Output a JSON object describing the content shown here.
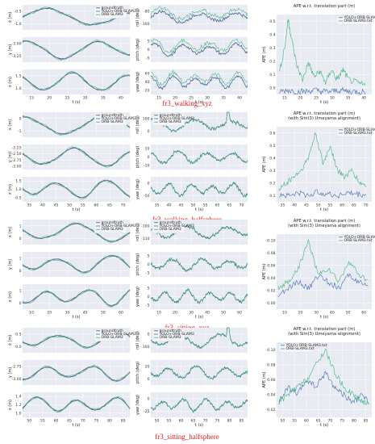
{
  "colors": {
    "panel_bg": "#e9ebf2",
    "grid": "#ffffff",
    "gt": "#4a4a4a",
    "yolo": "#3c6bb4",
    "orb": "#3fb37d",
    "caption": "#e8181c"
  },
  "rows": [
    {
      "caption": "fr3_walking_xyz",
      "traj": {
        "legend": [
          "groundtruth",
          "YOLO+ORB-SLAM3",
          "ORB-SLAM3"
        ],
        "xlabel": "t (s)",
        "xticks": [
          "15",
          "20",
          "25",
          "30",
          "35",
          "40"
        ],
        "xlim": [
          12,
          45
        ],
        "axes": [
          {
            "ylabel": "x (m)",
            "yticks": [
              "-0.5",
              "-1.0"
            ]
          },
          {
            "ylabel": "y (m)",
            "yticks": [
              "-3.00",
              "-3.25"
            ]
          },
          {
            "ylabel": "z (m)",
            "yticks": [
              "1.5",
              "1.0"
            ]
          }
        ]
      },
      "rpy": {
        "legend": [],
        "xlabel": "t (s)",
        "xticks": [
          "15",
          "20",
          "25",
          "30",
          "35",
          "40"
        ],
        "xlim": [
          12,
          45
        ],
        "axes": [
          {
            "ylabel": "roll (deg)",
            "yticks": [
              "-80",
              "-100"
            ]
          },
          {
            "ylabel": "pitch (deg)",
            "yticks": [
              "5",
              "0",
              "-5"
            ]
          },
          {
            "ylabel": "yaw (deg)",
            "yticks": [
              "60",
              "40",
              "20"
            ]
          }
        ]
      },
      "ape": {
        "title": [
          "APE w.r.t. translation part (m)"
        ],
        "legend": [
          "YOLO+ORB-SLAM3.txt",
          "ORB-SLAM3.txt"
        ],
        "legend_pos": "top-right",
        "xlabel": "t (s)",
        "ylabel": "APE (m)",
        "xticks": [
          "15",
          "20",
          "25",
          "30",
          "35",
          "40"
        ],
        "xlim": [
          12,
          45
        ],
        "yticks": [
          "0.5",
          "0.4",
          "0.3",
          "0.2",
          "0.1",
          "0.0"
        ],
        "ylim": [
          0,
          0.55
        ]
      }
    },
    {
      "caption": "fr3_walking_halfsphere",
      "traj": {
        "legend": [
          "groundtruth",
          "YOLO+ORB-SLAM3",
          "ORB-SLAM3"
        ],
        "xlabel": "t (s)",
        "xticks": [
          "35",
          "40",
          "45",
          "50",
          "55",
          "60",
          "65",
          "70"
        ],
        "xlim": [
          33,
          72
        ],
        "axes": [
          {
            "ylabel": "x (m)",
            "yticks": [
              "0",
              "-1"
            ]
          },
          {
            "ylabel": "y (m)",
            "yticks": [
              "-2.25",
              "-2.50",
              "-2.75",
              "-3.00"
            ]
          },
          {
            "ylabel": "z (m)",
            "yticks": [
              "1.5",
              "1.0",
              "0.5"
            ]
          }
        ]
      },
      "rpy": {
        "legend": [
          "groundtruth",
          "YOLO+ORB-SLAM3",
          "ORB-SLAM3"
        ],
        "xlabel": "t (s)",
        "xticks": [
          "35",
          "40",
          "45",
          "50",
          "55",
          "60",
          "65",
          "70"
        ],
        "xlim": [
          33,
          72
        ],
        "axes": [
          {
            "ylabel": "roll (deg)",
            "yticks": [
              "100",
              "0"
            ]
          },
          {
            "ylabel": "pitch (deg)",
            "yticks": [
              "10",
              "0",
              "-10"
            ]
          },
          {
            "ylabel": "yaw (deg)",
            "yticks": [
              "0",
              "-50"
            ]
          }
        ]
      },
      "ape": {
        "title": [
          "APE w.r.t. translation part (m)",
          "(with Sim(3) Umeyama alignment)"
        ],
        "legend": [
          "YOLO+ORB-SLAM3.txt",
          "ORB-SLAM3.txt"
        ],
        "legend_pos": "top-right",
        "xlabel": "t (s)",
        "ylabel": "APE (m)",
        "xticks": [
          "35",
          "40",
          "45",
          "50",
          "55",
          "60",
          "65",
          "70"
        ],
        "xlim": [
          33,
          72
        ],
        "yticks": [
          "0.6",
          "0.5",
          "0.4",
          "0.3",
          "0.2",
          "0.1"
        ],
        "ylim": [
          0.05,
          0.65
        ]
      }
    },
    {
      "caption": "fr3_sitting_xyz",
      "traj": {
        "legend": [
          "groundtruth",
          "YOLO+ORB-SLAM3",
          "ORB-SLAM3"
        ],
        "xlabel": "t (s)",
        "xticks": [
          "10",
          "20",
          "30",
          "40",
          "50",
          "60"
        ],
        "xlim": [
          2,
          68
        ],
        "axes": [
          {
            "ylabel": "x (m)",
            "yticks": [
              "1",
              "0"
            ]
          },
          {
            "ylabel": "y (m)",
            "yticks": [
              "1",
              "0"
            ]
          },
          {
            "ylabel": "z (m)",
            "yticks": [
              "1",
              "0"
            ]
          }
        ]
      },
      "rpy": {
        "legend": [
          "groundtruth",
          "YOLO+ORB-SLAM3",
          "ORB-SLAM3"
        ],
        "xlabel": "t (s)",
        "xticks": [
          "10",
          "20",
          "30",
          "40",
          "50",
          "60"
        ],
        "xlim": [
          2,
          68
        ],
        "axes": [
          {
            "ylabel": "roll (deg)",
            "yticks": [
              "-100",
              "-110"
            ]
          },
          {
            "ylabel": "pitch (deg)",
            "yticks": [
              "5",
              "0",
              "-5"
            ]
          },
          {
            "ylabel": "yaw (deg)",
            "yticks": [
              "5",
              "0",
              "-5"
            ]
          }
        ]
      },
      "ape": {
        "title": [
          "APE w.r.t. translation part (m)",
          "(with Sim(3) Umeyama alignment)"
        ],
        "legend": [
          "YOLO+ORB-SLAM3.txt",
          "ORB-SLAM3.txt"
        ],
        "legend_pos": "top-right",
        "xlabel": "t (s)",
        "ylabel": "APE (m)",
        "xticks": [
          "10",
          "20",
          "30",
          "40",
          "50",
          "60"
        ],
        "xlim": [
          2,
          68
        ],
        "yticks": [
          "0.10",
          "0.08",
          "0.06",
          "0.04",
          "0.02",
          "0.00"
        ],
        "ylim": [
          0,
          0.11
        ]
      }
    },
    {
      "caption": "fr3_sitting_halfsphere",
      "traj": {
        "legend": [
          "groundtruth",
          "YOLO+ORB-SLAM3",
          "ORB-SLAM3"
        ],
        "xlabel": "t (s)",
        "xticks": [
          "50",
          "55",
          "60",
          "65",
          "70",
          "75",
          "80",
          "85"
        ],
        "xlim": [
          47,
          88
        ],
        "axes": [
          {
            "ylabel": "x (m)",
            "yticks": [
              "0.5",
              "0.0"
            ]
          },
          {
            "ylabel": "y (m)",
            "yticks": [
              "-2.75",
              "-3.00"
            ]
          },
          {
            "ylabel": "z (m)",
            "yticks": [
              "1.4",
              "1.2",
              "1.0"
            ]
          }
        ]
      },
      "rpy": {
        "legend": [
          "groundtruth",
          "YOLO+ORB-SLAM3",
          "ORB-SLAM3"
        ],
        "xlabel": "t (s)",
        "xticks": [
          "50",
          "55",
          "60",
          "65",
          "70",
          "75",
          "80",
          "85"
        ],
        "xlim": [
          47,
          88
        ],
        "axes": [
          {
            "ylabel": "roll (deg)",
            "yticks": [
              "0",
              "-100"
            ]
          },
          {
            "ylabel": "pitch (deg)",
            "yticks": [
              "20",
              "0"
            ]
          },
          {
            "ylabel": "yaw (deg)",
            "yticks": [
              "0",
              "-25"
            ]
          }
        ]
      },
      "ape": {
        "title": [
          "APE w.r.t. translation part (m)",
          "(with Sim(3) Umeyama alignment)"
        ],
        "legend": [
          "YOLO+ORB-SLAM3.txt",
          "ORB-SLAM3.txt"
        ],
        "legend_pos": "top-left",
        "xlabel": "t (s)",
        "ylabel": "APE (m)",
        "xticks": [
          "50",
          "55",
          "60",
          "65",
          "70",
          "75",
          "80",
          "85"
        ],
        "xlim": [
          47,
          88
        ],
        "yticks": [
          "0.10",
          "0.08",
          "0.06",
          "0.04",
          "0.02"
        ],
        "ylim": [
          0.01,
          0.11
        ]
      }
    }
  ],
  "chart_data": [
    {
      "type": "line",
      "title": "APE w.r.t. translation part (m)",
      "xlabel": "t (s)",
      "ylabel": "APE (m)",
      "ylim": [
        0,
        0.55
      ],
      "series": [
        {
          "name": "YOLO+ORB-SLAM3.txt",
          "x": [
            13,
            16,
            19,
            22,
            25,
            28,
            31,
            34,
            37,
            40,
            43
          ],
          "values": [
            0.02,
            0.03,
            0.02,
            0.02,
            0.03,
            0.02,
            0.02,
            0.03,
            0.02,
            0.02,
            0.02
          ]
        },
        {
          "name": "ORB-SLAM3.txt",
          "x": [
            13,
            15,
            16,
            17,
            19,
            21,
            23,
            25,
            27,
            29,
            31,
            33,
            35,
            37,
            40,
            43
          ],
          "values": [
            0.15,
            0.35,
            0.52,
            0.4,
            0.2,
            0.1,
            0.22,
            0.12,
            0.16,
            0.08,
            0.17,
            0.1,
            0.17,
            0.1,
            0.08,
            0.06
          ]
        }
      ]
    },
    {
      "type": "line",
      "title": "APE w.r.t. translation part (m)",
      "xlabel": "t (s)",
      "ylabel": "APE (m)",
      "ylim": [
        0.05,
        0.65
      ],
      "series": [
        {
          "name": "YOLO+ORB-SLAM3.txt",
          "x": [
            34,
            38,
            42,
            46,
            50,
            54,
            58,
            62,
            66,
            70
          ],
          "values": [
            0.11,
            0.1,
            0.12,
            0.1,
            0.13,
            0.11,
            0.1,
            0.12,
            0.11,
            0.1
          ]
        },
        {
          "name": "ORB-SLAM3.txt",
          "x": [
            34,
            37,
            40,
            43,
            46,
            49,
            52,
            55,
            58,
            61,
            64,
            67,
            70
          ],
          "values": [
            0.15,
            0.2,
            0.25,
            0.3,
            0.4,
            0.6,
            0.35,
            0.5,
            0.3,
            0.25,
            0.3,
            0.2,
            0.18
          ]
        }
      ]
    },
    {
      "type": "line",
      "title": "APE w.r.t. translation part (m)",
      "xlabel": "t (s)",
      "ylabel": "APE (m)",
      "ylim": [
        0,
        0.11
      ],
      "series": [
        {
          "name": "YOLO+ORB-SLAM3.txt",
          "x": [
            3,
            10,
            17,
            24,
            31,
            38,
            45,
            52,
            59,
            66
          ],
          "values": [
            0.02,
            0.03,
            0.04,
            0.03,
            0.05,
            0.04,
            0.03,
            0.05,
            0.04,
            0.03
          ]
        },
        {
          "name": "ORB-SLAM3.txt",
          "x": [
            3,
            10,
            17,
            24,
            31,
            38,
            45,
            52,
            59,
            66
          ],
          "values": [
            0.03,
            0.04,
            0.06,
            0.1,
            0.05,
            0.06,
            0.04,
            0.07,
            0.05,
            0.04
          ]
        }
      ]
    },
    {
      "type": "line",
      "title": "APE w.r.t. translation part (m)",
      "xlabel": "t (s)",
      "ylabel": "APE (m)",
      "ylim": [
        0.01,
        0.11
      ],
      "series": [
        {
          "name": "YOLO+ORB-SLAM3.txt",
          "x": [
            48,
            52,
            56,
            60,
            64,
            68,
            72,
            76,
            80,
            84,
            87
          ],
          "values": [
            0.03,
            0.05,
            0.04,
            0.06,
            0.05,
            0.07,
            0.05,
            0.04,
            0.03,
            0.04,
            0.03
          ]
        },
        {
          "name": "ORB-SLAM3.txt",
          "x": [
            48,
            52,
            56,
            60,
            64,
            68,
            72,
            76,
            80,
            84,
            87
          ],
          "values": [
            0.03,
            0.04,
            0.05,
            0.06,
            0.08,
            0.1,
            0.07,
            0.05,
            0.04,
            0.03,
            0.03
          ]
        }
      ]
    }
  ]
}
